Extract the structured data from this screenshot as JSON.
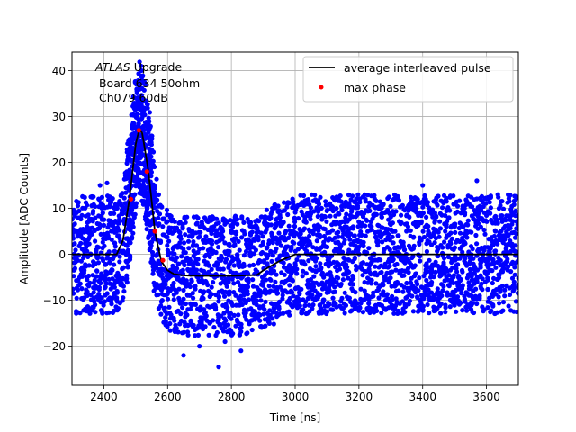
{
  "chart_data": {
    "type": "scatter",
    "xlabel": "Time [ns]",
    "ylabel": "Amplitude [ADC Counts]",
    "xlim": [
      2300,
      3700
    ],
    "ylim": [
      -28.5,
      44
    ],
    "x_ticks": [
      2400,
      2600,
      2800,
      3000,
      3200,
      3400,
      3600
    ],
    "y_ticks": [
      -20,
      -10,
      0,
      10,
      20,
      30,
      40
    ],
    "grid": true,
    "legend_position": "top-right",
    "annotation": {
      "line1_italic": "ATLAS",
      "line1_rest": " Upgrade",
      "line2": " Board 634 50ohm",
      "line3": " Ch079 60dB"
    },
    "colors": {
      "samples": "#0000ff",
      "average": "#000000",
      "max_phase": "#ff0000",
      "grid": "#b0b0b0"
    },
    "series": [
      {
        "name": "average interleaved pulse",
        "style": "line",
        "color": "#000000",
        "x": [
          2300,
          2440,
          2460,
          2480,
          2500,
          2510,
          2520,
          2540,
          2560,
          2580,
          2600,
          2620,
          2650,
          2700,
          2800,
          2880,
          2900,
          2950,
          3000,
          3100,
          3300,
          3500,
          3700
        ],
        "y": [
          0,
          0,
          3,
          12,
          24,
          27,
          26.5,
          18,
          5,
          -1.5,
          -3.5,
          -4.3,
          -4.6,
          -4.7,
          -4.7,
          -4.5,
          -3.5,
          -1.5,
          0,
          0,
          0,
          0,
          0
        ]
      },
      {
        "name": "max phase",
        "style": "markers",
        "color": "#ff0000",
        "x": [
          2485,
          2510,
          2535,
          2560,
          2585
        ],
        "y": [
          12,
          27,
          18,
          5,
          -1.3
        ]
      },
      {
        "name": "",
        "style": "scatter",
        "color": "#0000ff",
        "note": "dense cloud of individual samples around the average pulse, noise band roughly +/-13 ADC counts",
        "noise_band": [
          -13,
          13
        ],
        "outliers_y": [
          -24.5,
          -22,
          -21,
          -20,
          -19,
          15,
          15.5,
          15,
          16
        ]
      }
    ]
  }
}
